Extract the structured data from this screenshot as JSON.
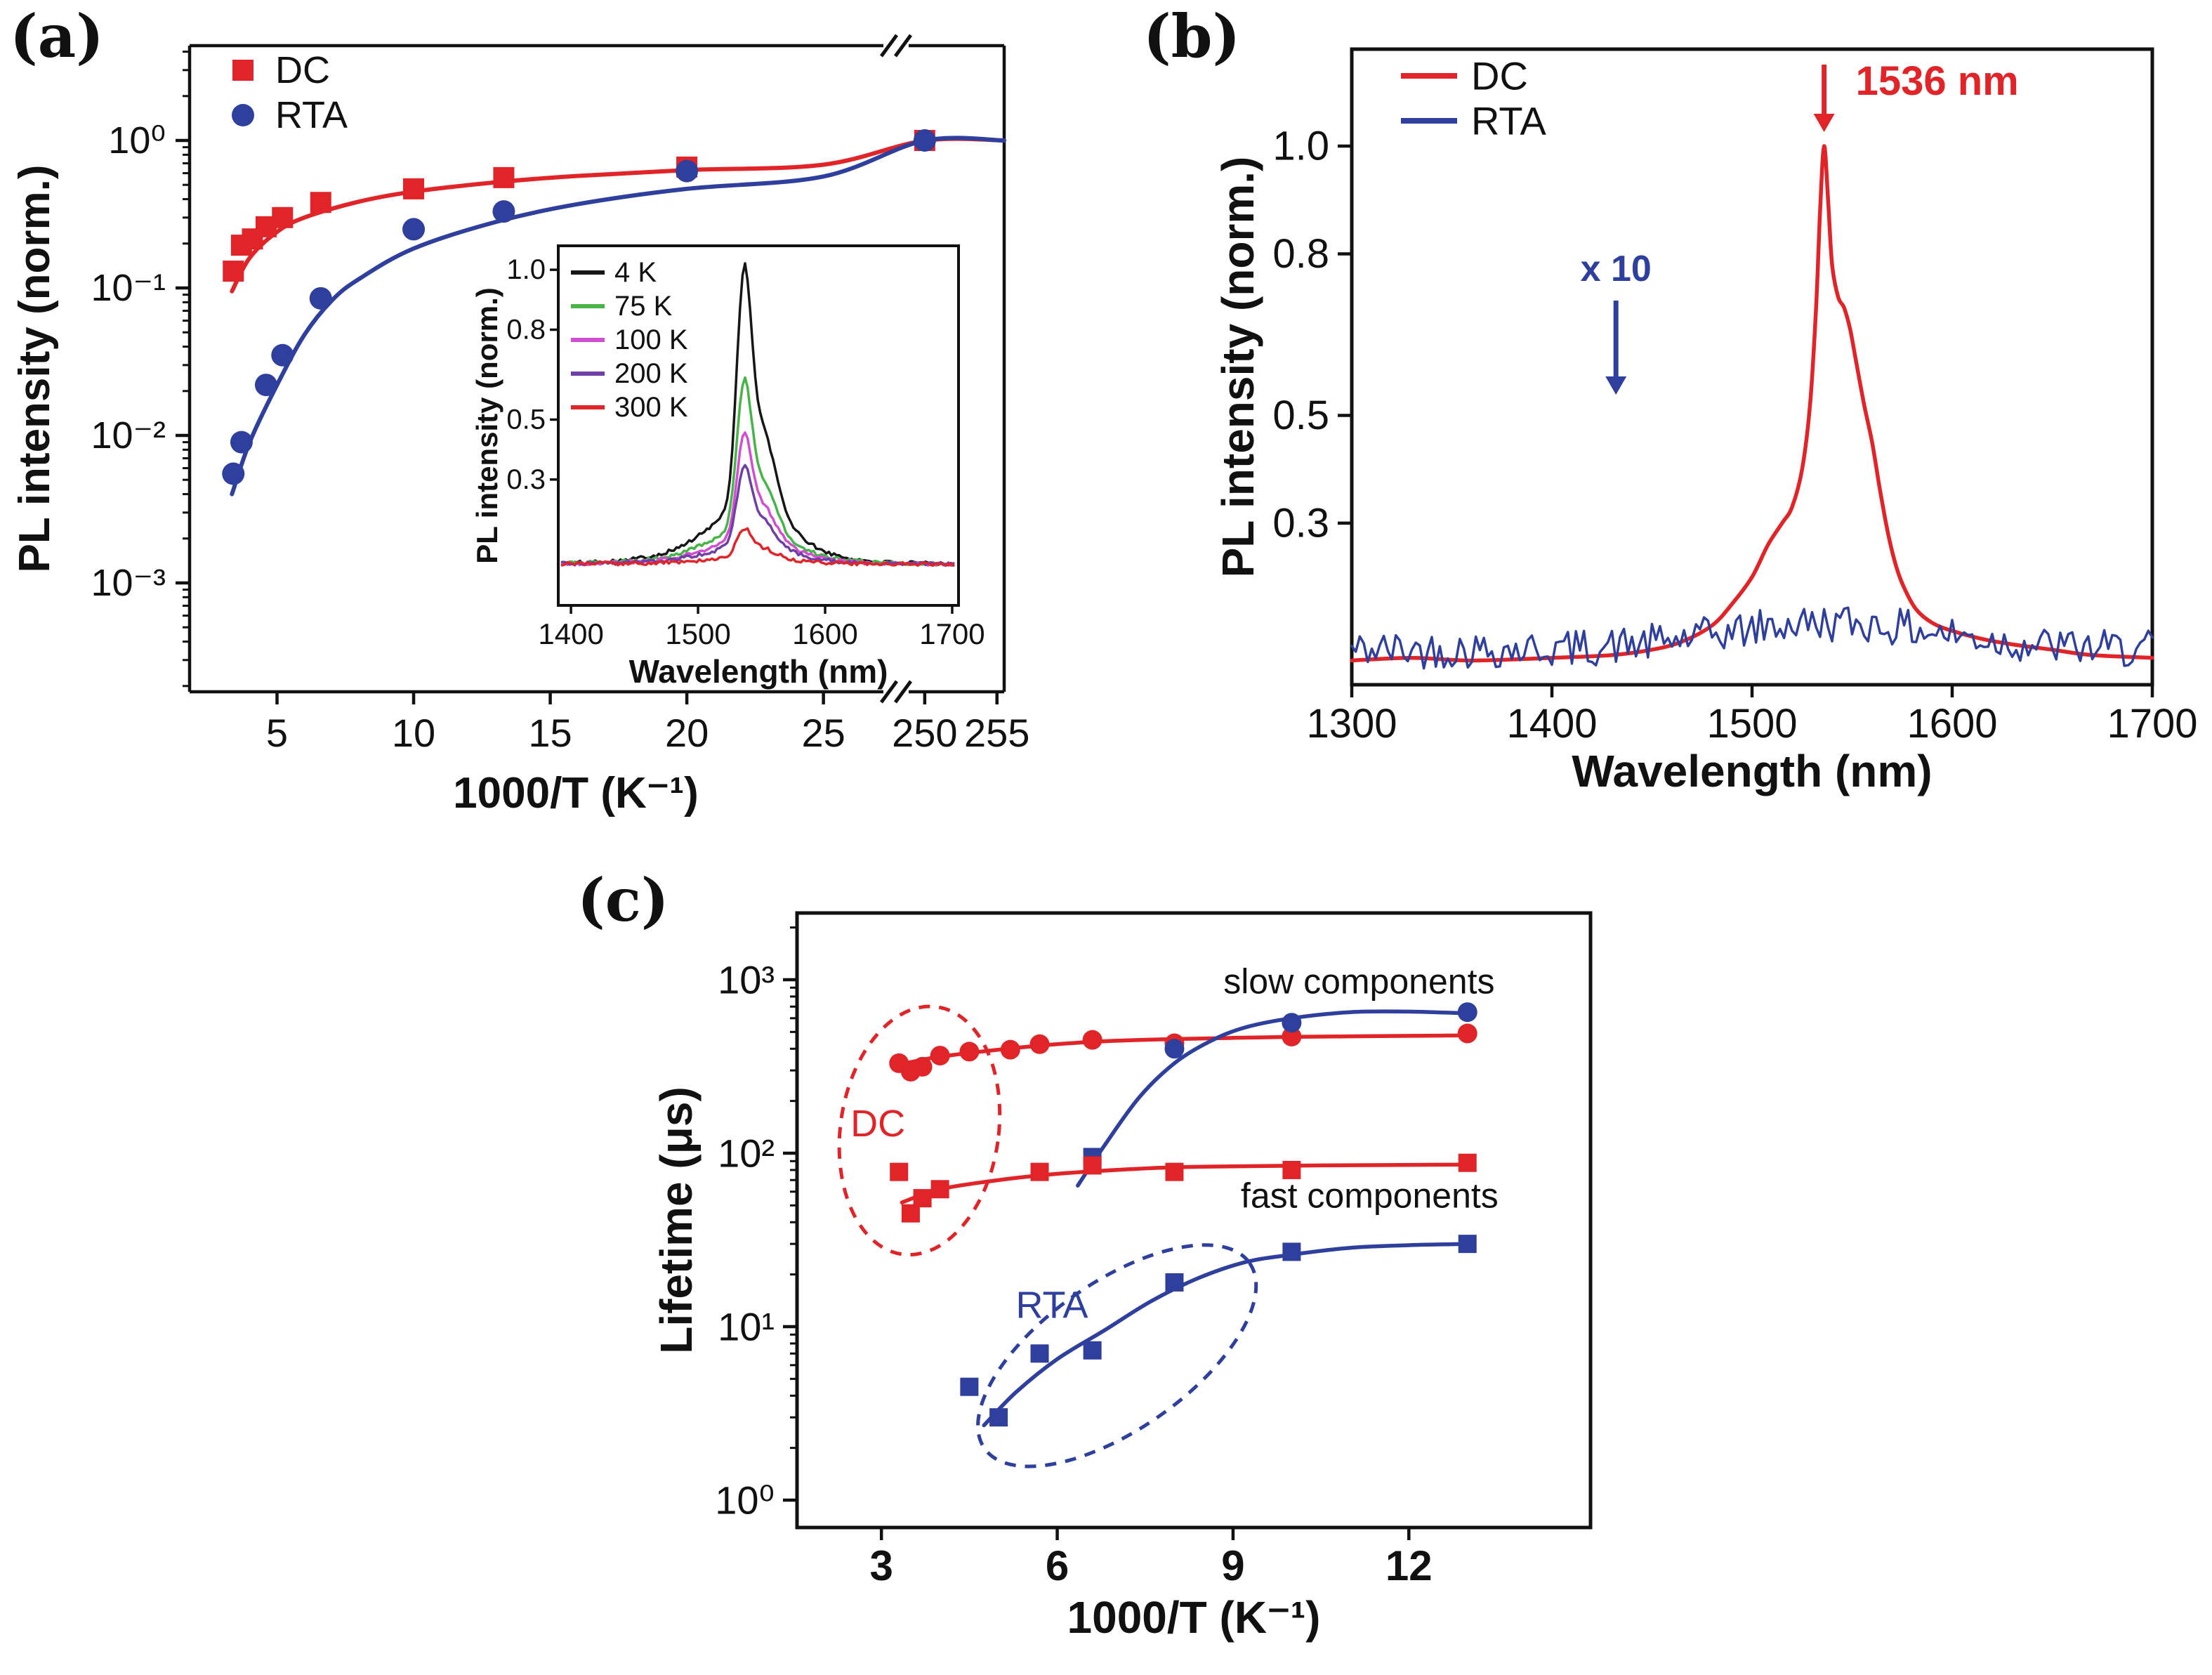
{
  "colors": {
    "red": "#e02428",
    "blue": "#2e3f9e",
    "black": "#161616",
    "green": "#47b447",
    "magenta": "#d14ed1",
    "purple": "#6f3fa5",
    "text": "#111111",
    "background": "#ffffff"
  },
  "panels": {
    "a": {
      "label": "(a)"
    },
    "b": {
      "label": "(b)"
    },
    "c": {
      "label": "(c)"
    }
  },
  "chart_data": [
    {
      "id": "panel_a",
      "type": "scatter",
      "xlabel": "1000/T (K⁻¹)",
      "ylabel": "PL intensity (norm.)",
      "x_scale": "broken-linear",
      "x_segments": [
        [
          1.8,
          27.4
        ],
        [
          248.5,
          255.5
        ]
      ],
      "x_ticks": [
        5,
        10,
        15,
        20,
        25,
        250,
        255
      ],
      "y_scale": "log",
      "y_range": [
        0.00018,
        4.4
      ],
      "y_ticks": [
        1,
        0.1,
        0.01,
        0.001
      ],
      "y_tick_labels": [
        "10⁰",
        "10⁻¹",
        "10⁻²",
        "10⁻³"
      ],
      "legend": [
        {
          "label": "DC",
          "marker": "square",
          "color": "red"
        },
        {
          "label": "RTA",
          "marker": "circle",
          "color": "blue"
        }
      ],
      "series": [
        {
          "name": "DC",
          "marker": "square",
          "color": "red",
          "points": [
            [
              3.4,
              0.13
            ],
            [
              3.7,
              0.195
            ],
            [
              4.1,
              0.215
            ],
            [
              4.6,
              0.26
            ],
            [
              5.2,
              0.3
            ],
            [
              6.6,
              0.38
            ],
            [
              10,
              0.47
            ],
            [
              13.3,
              0.56
            ],
            [
              20,
              0.66
            ],
            [
              250,
              1.0
            ]
          ],
          "fit": [
            [
              3.35,
              0.095
            ],
            [
              4,
              0.16
            ],
            [
              5,
              0.24
            ],
            [
              6,
              0.3
            ],
            [
              8,
              0.385
            ],
            [
              10,
              0.45
            ],
            [
              13,
              0.52
            ],
            [
              16,
              0.575
            ],
            [
              20,
              0.63
            ],
            [
              25,
              0.685
            ],
            [
              250,
              0.998
            ],
            [
              255.5,
              1.0
            ]
          ]
        },
        {
          "name": "RTA",
          "marker": "circle",
          "color": "blue",
          "points": [
            [
              3.4,
              0.0055
            ],
            [
              3.7,
              0.009
            ],
            [
              4.6,
              0.022
            ],
            [
              5.2,
              0.035
            ],
            [
              6.6,
              0.085
            ],
            [
              10,
              0.25
            ],
            [
              13.3,
              0.33
            ],
            [
              20,
              0.62
            ],
            [
              250,
              1.0
            ]
          ],
          "fit": [
            [
              3.35,
              0.004
            ],
            [
              4,
              0.009
            ],
            [
              5,
              0.022
            ],
            [
              6,
              0.048
            ],
            [
              7,
              0.082
            ],
            [
              8,
              0.115
            ],
            [
              10,
              0.185
            ],
            [
              13,
              0.28
            ],
            [
              16,
              0.37
            ],
            [
              20,
              0.47
            ],
            [
              25,
              0.57
            ],
            [
              250,
              0.998
            ],
            [
              255.5,
              1.0
            ]
          ]
        }
      ]
    },
    {
      "id": "panel_a_inset",
      "type": "line",
      "xlabel": "Wavelength (nm)",
      "ylabel": "PL intensity (norm.)",
      "x_range": [
        1390,
        1705
      ],
      "x_ticks": [
        1400,
        1500,
        1600,
        1700
      ],
      "y_range": [
        -0.12,
        1.08
      ],
      "y_ticks": [
        0.3,
        0.5,
        0.8,
        1.0
      ],
      "y_tick_labels": [
        "0.3",
        "0.5",
        "0.8",
        "1.0"
      ],
      "peak_center_nm": 1536,
      "legend": [
        {
          "label": "4 K",
          "color": "black"
        },
        {
          "label": "75 K",
          "color": "green"
        },
        {
          "label": "100 K",
          "color": "magenta"
        },
        {
          "label": "200 K",
          "color": "purple"
        },
        {
          "label": "300 K",
          "color": "red"
        }
      ],
      "series": [
        {
          "name": "4 K",
          "color": "black",
          "peak": 1.0
        },
        {
          "name": "75 K",
          "color": "green",
          "peak": 0.62
        },
        {
          "name": "100 K",
          "color": "magenta",
          "peak": 0.44
        },
        {
          "name": "200 K",
          "color": "purple",
          "peak": 0.33
        },
        {
          "name": "300 K",
          "color": "red",
          "peak": 0.12
        }
      ]
    },
    {
      "id": "panel_b",
      "type": "line",
      "xlabel": "Wavelength (nm)",
      "ylabel": "PL intensity (norm.)",
      "x_range": [
        1300,
        1700
      ],
      "x_ticks": [
        1300,
        1400,
        1500,
        1600,
        1700
      ],
      "y_range": [
        0,
        1.18
      ],
      "y_ticks": [
        0.3,
        0.5,
        0.8,
        1.0
      ],
      "y_tick_labels": [
        "0.3",
        "0.5",
        "0.8",
        "1.0"
      ],
      "legend": [
        {
          "label": "DC",
          "color": "red"
        },
        {
          "label": "RTA",
          "color": "blue"
        }
      ],
      "annotations": [
        {
          "text": "1536 nm",
          "color": "red",
          "x": 1536
        },
        {
          "text": "x 10",
          "color": "blue",
          "x": 1432
        }
      ],
      "series": [
        {
          "name": "DC",
          "color": "red",
          "profile": [
            [
              1300,
              0.045
            ],
            [
              1330,
              0.05
            ],
            [
              1360,
              0.045
            ],
            [
              1400,
              0.05
            ],
            [
              1430,
              0.055
            ],
            [
              1450,
              0.065
            ],
            [
              1465,
              0.08
            ],
            [
              1480,
              0.11
            ],
            [
              1490,
              0.15
            ],
            [
              1500,
              0.2
            ],
            [
              1508,
              0.26
            ],
            [
              1515,
              0.3
            ],
            [
              1520,
              0.33
            ],
            [
              1525,
              0.4
            ],
            [
              1529,
              0.52
            ],
            [
              1532,
              0.7
            ],
            [
              1534,
              0.88
            ],
            [
              1536,
              1.0
            ],
            [
              1538,
              0.9
            ],
            [
              1540,
              0.78
            ],
            [
              1543,
              0.72
            ],
            [
              1546,
              0.7
            ],
            [
              1549,
              0.66
            ],
            [
              1552,
              0.6
            ],
            [
              1556,
              0.52
            ],
            [
              1560,
              0.45
            ],
            [
              1564,
              0.36
            ],
            [
              1568,
              0.28
            ],
            [
              1572,
              0.22
            ],
            [
              1576,
              0.18
            ],
            [
              1582,
              0.14
            ],
            [
              1590,
              0.115
            ],
            [
              1600,
              0.1
            ],
            [
              1615,
              0.085
            ],
            [
              1630,
              0.075
            ],
            [
              1650,
              0.065
            ],
            [
              1670,
              0.055
            ],
            [
              1700,
              0.05
            ]
          ]
        },
        {
          "name": "RTA",
          "color": "blue",
          "noise_base": 0.03,
          "noise_amp": 0.07,
          "bump_center": 1540,
          "bump_sigma": 55,
          "bump_height": 0.05
        }
      ]
    },
    {
      "id": "panel_c",
      "type": "scatter",
      "xlabel": "1000/T (K⁻¹)",
      "ylabel": "Lifetime (μs)",
      "x_range": [
        1.56,
        15.1
      ],
      "x_ticks": [
        3,
        6,
        9,
        12
      ],
      "y_scale": "log",
      "y_range": [
        0.7,
        2400
      ],
      "y_ticks": [
        1,
        10,
        100,
        1000
      ],
      "y_tick_labels": [
        "10⁰",
        "10¹",
        "10²",
        "10³"
      ],
      "group_labels": [
        {
          "text": "slow components",
          "x": 11.15,
          "y": 975
        },
        {
          "text": "fast components",
          "x": 11.33,
          "y": 57
        }
      ],
      "ellipse_annotations": [
        {
          "label": "DC",
          "color": "red",
          "cx": 3.65,
          "cy": 135,
          "rx_units": 1.35,
          "ry_decades": 0.72,
          "rotate": 8,
          "label_x": 2.94,
          "label_y": 148
        },
        {
          "label": "RTA",
          "color": "blue",
          "cx": 7.02,
          "cy": 6.8,
          "rx_units": 2.76,
          "ry_decades": 0.425,
          "rotate": -35,
          "label_x": 5.91,
          "label_y": 13.3
        }
      ],
      "series": [
        {
          "name": "DC slow",
          "marker": "circle",
          "color": "red",
          "points": [
            [
              3.3,
              330
            ],
            [
              3.5,
              295
            ],
            [
              3.7,
              315
            ],
            [
              4.0,
              365
            ],
            [
              4.5,
              385
            ],
            [
              5.2,
              395
            ],
            [
              5.7,
              425
            ],
            [
              6.6,
              450
            ],
            [
              8.0,
              430
            ],
            [
              10,
              470
            ],
            [
              13,
              490
            ]
          ],
          "fit": [
            [
              3.2,
              320
            ],
            [
              3.6,
              340
            ],
            [
              4,
              360
            ],
            [
              5,
              395
            ],
            [
              6,
              425
            ],
            [
              7,
              445
            ],
            [
              8,
              455
            ],
            [
              9,
              462
            ],
            [
              10,
              468
            ],
            [
              11.5,
              473
            ],
            [
              13,
              478
            ]
          ]
        },
        {
          "name": "RTA slow",
          "marker": "circle",
          "color": "blue",
          "points": [
            [
              8,
              400
            ],
            [
              10,
              565
            ],
            [
              13,
              650
            ]
          ],
          "onset_points": [
            [
              6.6,
              95
            ]
          ],
          "fit": [
            [
              6.35,
              65
            ],
            [
              6.8,
              110
            ],
            [
              7.4,
              210
            ],
            [
              8,
              330
            ],
            [
              8.6,
              440
            ],
            [
              9.2,
              530
            ],
            [
              10,
              600
            ],
            [
              11,
              650
            ],
            [
              12,
              655
            ],
            [
              13,
              640
            ]
          ]
        },
        {
          "name": "DC fast",
          "marker": "square",
          "color": "red",
          "points": [
            [
              3.3,
              78
            ],
            [
              3.5,
              45
            ],
            [
              3.7,
              55
            ],
            [
              4.0,
              62
            ],
            [
              5.7,
              78
            ],
            [
              6.6,
              85
            ],
            [
              8,
              78
            ],
            [
              10,
              80
            ],
            [
              13,
              88
            ]
          ],
          "fit": [
            [
              3.35,
              52
            ],
            [
              4,
              62
            ],
            [
              5,
              70
            ],
            [
              6,
              76
            ],
            [
              7,
              80
            ],
            [
              8,
              83
            ],
            [
              9,
              84
            ],
            [
              10.5,
              85
            ],
            [
              13,
              86
            ]
          ]
        },
        {
          "name": "RTA fast",
          "marker": "square",
          "color": "blue",
          "points": [
            [
              4.5,
              4.5
            ],
            [
              5.0,
              3.0
            ],
            [
              5.7,
              7.0
            ],
            [
              6.6,
              7.3
            ],
            [
              8,
              18
            ],
            [
              10,
              27
            ],
            [
              13,
              30
            ]
          ],
          "fit": [
            [
              4.75,
              2.7
            ],
            [
              5.3,
              4.2
            ],
            [
              6,
              6.5
            ],
            [
              6.8,
              9.5
            ],
            [
              7.6,
              14
            ],
            [
              8.4,
              19
            ],
            [
              9.2,
              23.5
            ],
            [
              10,
              26
            ],
            [
              11,
              28.5
            ],
            [
              12,
              29.5
            ],
            [
              13,
              30
            ]
          ]
        }
      ]
    }
  ]
}
